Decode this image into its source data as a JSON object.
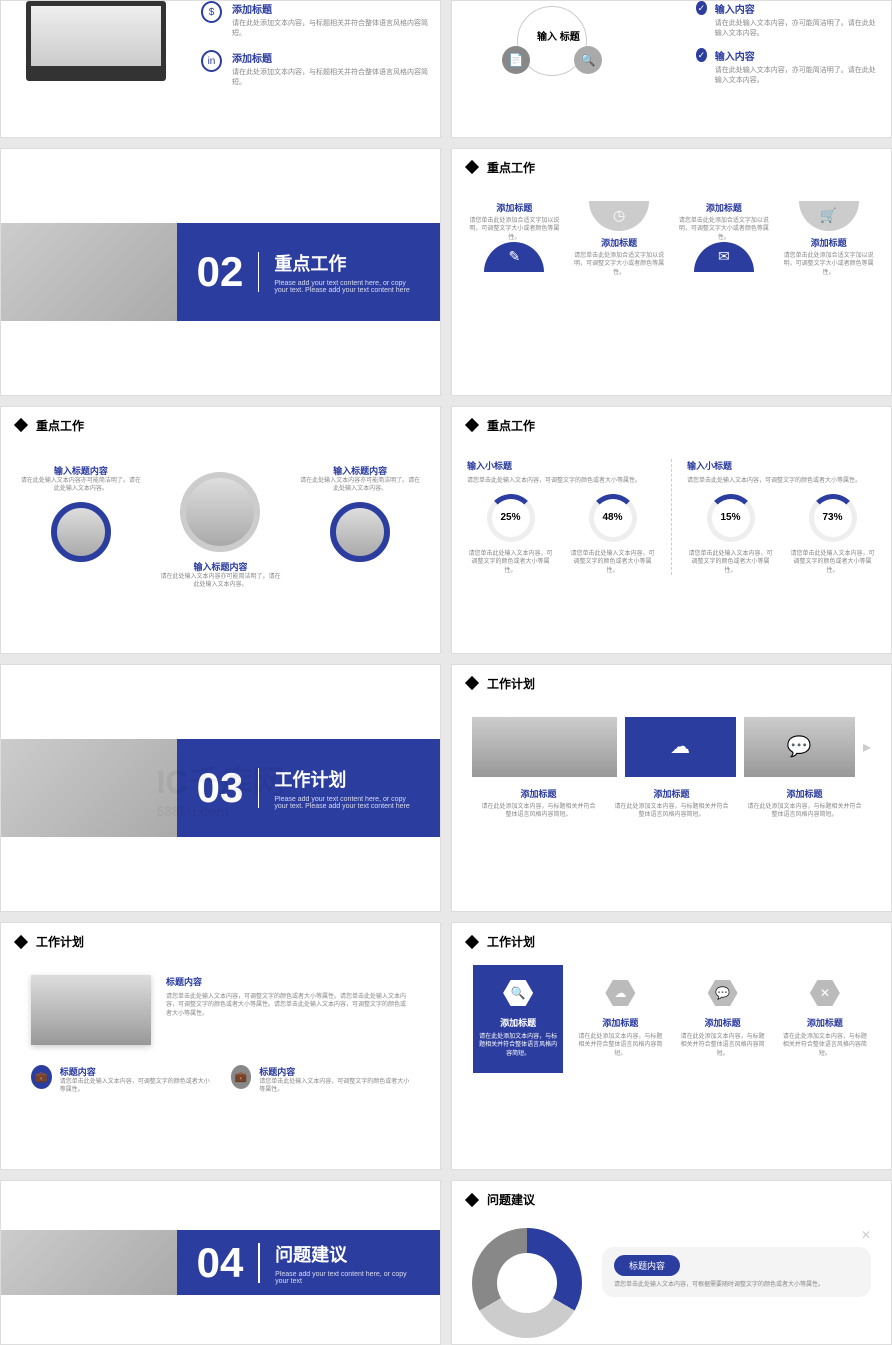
{
  "colors": {
    "primary": "#2c3da0",
    "gray": "#bbbbbb",
    "text_gray": "#888888"
  },
  "watermark": "IC千库网",
  "watermark_url": "588ku.com",
  "slides": {
    "s1": {
      "items": [
        {
          "title": "添加标题",
          "desc": "请在此处添加文本内容，与标题相关并符合整体语言风格内容简短。"
        },
        {
          "title": "添加标题",
          "desc": "请在此处添加文本内容，与标题相关并符合整体语言风格内容简短。"
        }
      ]
    },
    "s2": {
      "center": "输入\n标题",
      "items": [
        {
          "title": "输入内容",
          "desc": "请在此处输入文本内容，亦可能简洁明了。请在此处输入文本内容。"
        },
        {
          "title": "输入内容",
          "desc": "请在此处输入文本内容，亦可能简洁明了。请在此处输入文本内容。"
        }
      ]
    },
    "divider2": {
      "num": "02",
      "title": "重点工作",
      "sub": "Please add your text content here, or copy your text. Please add your text content here"
    },
    "divider3": {
      "num": "03",
      "title": "工作计划",
      "sub": "Please add your text content here, or copy your text. Please add your text content here"
    },
    "divider4": {
      "num": "04",
      "title": "问题建议",
      "sub": "Please add your text content here, or copy your text"
    },
    "headers": {
      "s4": "重点工作",
      "s5": "重点工作",
      "s6": "重点工作",
      "s8": "工作计划",
      "s9": "工作计划",
      "s10": "工作计划",
      "s12": "问题建议"
    },
    "s4": {
      "cols": [
        {
          "title": "添加标题",
          "desc": "请您单击此处添加合适文字加以说明，可调整文字大小或者颜色等属性。",
          "color": "#2c3da0",
          "icon": "✎",
          "pos": "top"
        },
        {
          "title": "添加标题",
          "desc": "请您单击此处添加合适文字加以说明，可调整文字大小或者颜色等属性。",
          "color": "#cccccc",
          "icon": "◷",
          "pos": "bottom"
        },
        {
          "title": "添加标题",
          "desc": "请您单击此处添加合适文字加以说明，可调整文字大小或者颜色等属性。",
          "color": "#2c3da0",
          "icon": "✉",
          "pos": "top"
        },
        {
          "title": "添加标题",
          "desc": "请您单击此处添加合适文字加以说明，可调整文字大小或者颜色等属性。",
          "color": "#cccccc",
          "icon": "🛒",
          "pos": "bottom"
        }
      ]
    },
    "s5": {
      "cols": [
        {
          "title": "输入标题内容",
          "desc": "请在此处输入文本内容亦可能简洁明了。请在此处输入文本内容。"
        },
        {
          "title": "输入标题内容",
          "desc": "请在此处输入文本内容亦可能简洁明了。请在此处输入文本内容。"
        },
        {
          "title": "输入标题内容",
          "desc": "请在此处输入文本内容亦可能简洁明了。请在此处输入文本内容。"
        }
      ]
    },
    "s6": {
      "halves": [
        {
          "subtitle": "输入小标题",
          "desc": "请您单击此处输入文本内容，可调整文字的颜色或者大小等属性。",
          "rings": [
            {
              "pct": "25%",
              "desc": "请您单击此处输入文本内容，可调整文字的颜色或者大小等属性。"
            },
            {
              "pct": "48%",
              "desc": "请您单击此处输入文本内容，可调整文字的颜色或者大小等属性。"
            }
          ]
        },
        {
          "subtitle": "输入小标题",
          "desc": "请您单击此处输入文本内容，可调整文字的颜色或者大小等属性。",
          "rings": [
            {
              "pct": "15%",
              "desc": "请您单击此处输入文本内容，可调整文字的颜色或者大小等属性。"
            },
            {
              "pct": "73%",
              "desc": "请您单击此处输入文本内容，可调整文字的颜色或者大小等属性。"
            }
          ]
        }
      ]
    },
    "s8": {
      "cols": [
        {
          "title": "添加标题",
          "desc": "请在此处添加文本内容，与标题相关并符合整体语言风格内容简短。"
        },
        {
          "title": "添加标题",
          "desc": "请在此处添加文本内容，与标题相关并符合整体语言风格内容简短。"
        },
        {
          "title": "添加标题",
          "desc": "请在此处添加文本内容，与标题相关并符合整体语言风格内容简短。"
        }
      ]
    },
    "s9": {
      "main_title": "标题内容",
      "main_desc": "请您单击此处输入文本内容，可调整文字的颜色或者大小等属性。请您单击此处输入文本内容，可调整文字的颜色或者大小等属性。请您单击此处输入文本内容，可调整文字的颜色或者大小等属性。",
      "items": [
        {
          "title": "标题内容",
          "desc": "请您单击此处输入文本内容，可调整文字的颜色或者大小等属性。"
        },
        {
          "title": "标题内容",
          "desc": "请您单击此处输入文本内容，可调整文字的颜色或者大小等属性。"
        }
      ]
    },
    "s10": {
      "cols": [
        {
          "title": "添加标题",
          "desc": "请在此处添加文本内容，与标题相关并符合整体语言风格内容简短。",
          "icon": "🔍",
          "active": true
        },
        {
          "title": "添加标题",
          "desc": "请在此处添加文本内容，与标题相关并符合整体语言风格内容简短。",
          "icon": "☁",
          "active": false
        },
        {
          "title": "添加标题",
          "desc": "请在此处添加文本内容，与标题相关并符合整体语言风格内容简短。",
          "icon": "💬",
          "active": false
        },
        {
          "title": "添加标题",
          "desc": "请在此处添加文本内容，与标题相关并符合整体语言风格内容简短。",
          "icon": "✕",
          "active": false
        }
      ]
    },
    "s12": {
      "pill": "标题内容",
      "desc": "请您单击此处输入文本内容，可根据需要随时调整文字的颜色或者大小等属性。",
      "title2": "标题内容"
    }
  }
}
